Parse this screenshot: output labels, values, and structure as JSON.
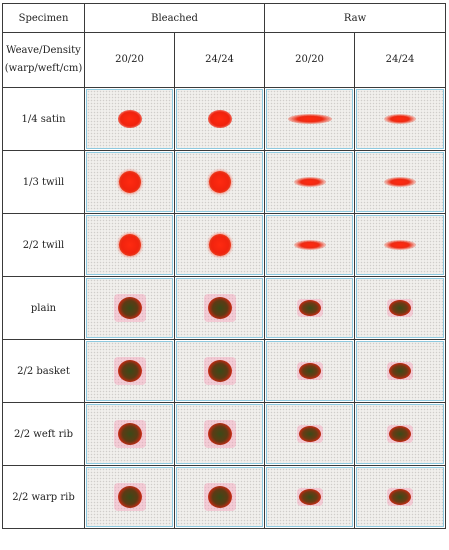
{
  "header": {
    "specimen": "Specimen",
    "bleached": "Bleached",
    "raw": "Raw",
    "weave_density_line1": "Weave/Density",
    "weave_density_line2": "(warp/weft/cm)",
    "densities": [
      "20/20",
      "24/24",
      "20/20",
      "24/24"
    ]
  },
  "rows": [
    {
      "label": "1/4 satin",
      "spots": [
        "oval",
        "oval",
        "streak",
        "streak-sm"
      ]
    },
    {
      "label": "1/3 twill",
      "spots": [
        "round",
        "round",
        "streak-sm",
        "streak-sm"
      ]
    },
    {
      "label": "2/2 twill",
      "spots": [
        "round",
        "round",
        "streak-sm",
        "streak-sm"
      ]
    },
    {
      "label": "plain",
      "spots": [
        "dark",
        "dark",
        "dark-sm",
        "dark-sm"
      ]
    },
    {
      "label": "2/2 basket",
      "spots": [
        "dark",
        "dark",
        "dark-sm",
        "dark-sm"
      ]
    },
    {
      "label": "2/2 weft rib",
      "spots": [
        "dark",
        "dark",
        "dark-sm",
        "dark-sm"
      ]
    },
    {
      "label": "2/2 warp rib",
      "spots": [
        "dark",
        "dark",
        "dark-sm",
        "dark-sm"
      ]
    }
  ],
  "colors": {
    "border": "#3a3a3a",
    "image_frame": "#8ec9df",
    "stain_red": "#f0230e",
    "stain_dark": "#5d3a14",
    "halo_pink": "#f58caf"
  }
}
